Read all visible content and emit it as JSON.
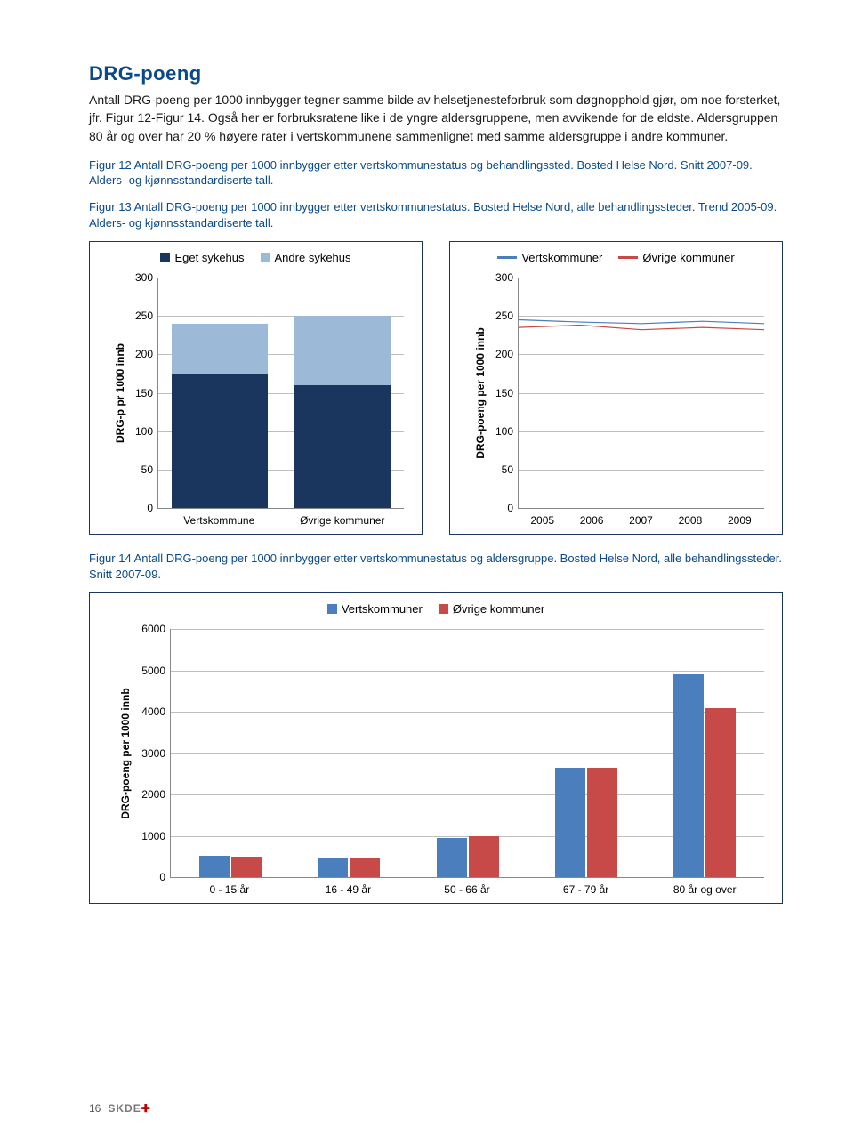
{
  "title": "DRG-poeng",
  "paragraph": "Antall DRG-poeng per 1000 innbygger tegner samme bilde av helsetjenesteforbruk som døgnopphold gjør, om noe forsterket, jfr. Figur 12-Figur 14. Også her er forbruksratene like i de yngre aldersgruppene, men avvikende for de eldste. Aldersgruppen 80 år og over har 20 % høyere rater i vertskommunene sammenlignet med samme aldersgruppe i andre kommuner.",
  "caption12": "Figur 12 Antall DRG-poeng per 1000 innbygger etter vertskommunestatus og behandlingssted. Bosted Helse Nord. Snitt 2007-09. Alders- og kjønnsstandardiserte tall.",
  "caption13": "Figur 13 Antall DRG-poeng per 1000 innbygger etter vertskommunestatus. Bosted Helse Nord, alle behandlingssteder. Trend 2005-09. Alders- og kjønnsstandardiserte tall.",
  "caption14": "Figur 14 Antall DRG-poeng per 1000 innbygger etter vertskommunestatus og aldersgruppe. Bosted Helse Nord, alle behandlingssteder. Snitt 2007-09.",
  "colors": {
    "dark_blue": "#1a365f",
    "light_blue": "#9db9d8",
    "series_blue": "#4a7ebc",
    "series_red": "#c84a48",
    "grid": "#bfbfbf"
  },
  "chart12": {
    "type": "stacked-bar",
    "legend": [
      {
        "label": "Eget sykehus",
        "color": "#1a365f"
      },
      {
        "label": "Andre sykehus",
        "color": "#9db9d8"
      }
    ],
    "y_label": "DRG-p pr 1000 innb",
    "y_max": 300,
    "y_step": 50,
    "categories": [
      "Vertskommune",
      "Øvrige kommuner"
    ],
    "series": {
      "eget": [
        175,
        160
      ],
      "andre": [
        65,
        90
      ]
    }
  },
  "chart13": {
    "type": "line",
    "legend": [
      {
        "label": "Vertskommuner",
        "color": "#4a7ebc"
      },
      {
        "label": "Øvrige kommuner",
        "color": "#c84a48"
      }
    ],
    "y_label": "DRG-poeng per 1000 innb",
    "y_max": 300,
    "y_step": 50,
    "categories": [
      "2005",
      "2006",
      "2007",
      "2008",
      "2009"
    ],
    "series": {
      "verts": [
        245,
        242,
        240,
        243,
        240
      ],
      "ovrige": [
        235,
        238,
        232,
        235,
        232
      ]
    }
  },
  "chart14": {
    "type": "grouped-bar",
    "legend": [
      {
        "label": "Vertskommuner",
        "color": "#4a7ebc"
      },
      {
        "label": "Øvrige kommuner",
        "color": "#c84a48"
      }
    ],
    "y_label": "DRG-poeng per 1000 innb",
    "y_max": 6000,
    "y_step": 1000,
    "categories": [
      "0 - 15 år",
      "16 - 49 år",
      "50 - 66 år",
      "67 - 79 år",
      "80 år og over"
    ],
    "series": {
      "verts": [
        520,
        470,
        940,
        2650,
        4900
      ],
      "ovrige": [
        500,
        480,
        1000,
        2650,
        4100
      ]
    }
  },
  "footer": {
    "page": "16",
    "brand": "SKDE"
  }
}
